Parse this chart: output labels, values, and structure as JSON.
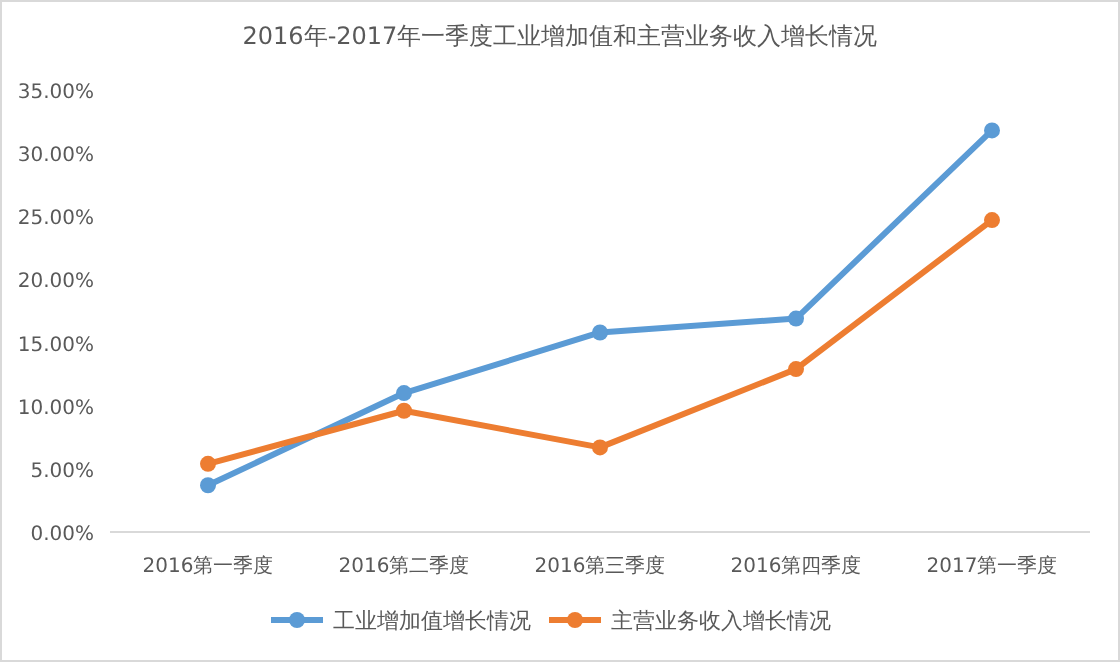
{
  "chart_data": {
    "type": "line",
    "title": "2016年-2017年一季度工业增加值和主营业务收入增长情况",
    "categories": [
      "2016第一季度",
      "2016第二季度",
      "2016第三季度",
      "2016第四季度",
      "2017第一季度"
    ],
    "series": [
      {
        "name": "工业增加值增长情况",
        "color": "#5b9bd5",
        "values": [
          3.7,
          11.0,
          15.8,
          16.9,
          31.8
        ]
      },
      {
        "name": "主营业务收入增长情况",
        "color": "#ed7d31",
        "values": [
          5.4,
          9.6,
          6.7,
          12.9,
          24.7
        ]
      }
    ],
    "ylim": [
      0,
      35
    ],
    "yticks": [
      {
        "value": 0,
        "label": "0.00%"
      },
      {
        "value": 5,
        "label": "5.00%"
      },
      {
        "value": 10,
        "label": "10.00%"
      },
      {
        "value": 15,
        "label": "15.00%"
      },
      {
        "value": 20,
        "label": "20.00%"
      },
      {
        "value": 25,
        "label": "25.00%"
      },
      {
        "value": 30,
        "label": "30.00%"
      },
      {
        "value": 35,
        "label": "35.00%"
      }
    ],
    "grid": false,
    "legend": "bottom",
    "marker": "circle",
    "line_style": "solid"
  }
}
